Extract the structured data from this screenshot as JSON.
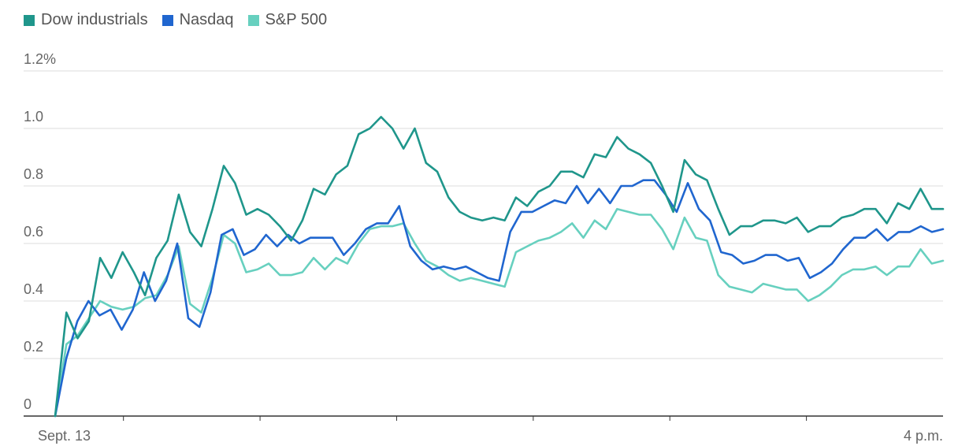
{
  "legend": [
    {
      "label": "Dow industrials",
      "color": "#1f968b"
    },
    {
      "label": "Nasdaq",
      "color": "#2066cf"
    },
    {
      "label": "S&P 500",
      "color": "#67d0bf"
    }
  ],
  "chart_data": {
    "type": "line",
    "title": "",
    "xlabel": "",
    "ylabel": "",
    "ylim": [
      0,
      1.2
    ],
    "yticks": [
      0,
      0.2,
      0.4,
      0.6,
      0.8,
      1.0,
      1.2
    ],
    "ytick_labels": [
      "0",
      "0.2",
      "0.4",
      "0.6",
      "0.8",
      "1.0",
      "1.2%"
    ],
    "x_tick_labels": {
      "start": "Sept. 13",
      "end": "4 p.m."
    },
    "grid": true,
    "legend_position": "top-left",
    "series": [
      {
        "name": "Dow industrials",
        "color": "#1f968b",
        "values": [
          0.0,
          0.36,
          0.27,
          0.33,
          0.55,
          0.48,
          0.57,
          0.5,
          0.42,
          0.55,
          0.61,
          0.77,
          0.64,
          0.59,
          0.72,
          0.87,
          0.81,
          0.7,
          0.72,
          0.7,
          0.66,
          0.61,
          0.68,
          0.79,
          0.77,
          0.84,
          0.87,
          0.98,
          1.0,
          1.04,
          1.0,
          0.93,
          1.0,
          0.88,
          0.85,
          0.76,
          0.71,
          0.69,
          0.68,
          0.69,
          0.68,
          0.76,
          0.73,
          0.78,
          0.8,
          0.85,
          0.85,
          0.83,
          0.91,
          0.9,
          0.97,
          0.93,
          0.91,
          0.88,
          0.8,
          0.71,
          0.89,
          0.84,
          0.82,
          0.72,
          0.63,
          0.66,
          0.66,
          0.68,
          0.68,
          0.67,
          0.69,
          0.64,
          0.66,
          0.66,
          0.69,
          0.7,
          0.72,
          0.72,
          0.67,
          0.74,
          0.72,
          0.79,
          0.72,
          0.72
        ]
      },
      {
        "name": "Nasdaq",
        "color": "#2066cf",
        "values": [
          0.0,
          0.2,
          0.33,
          0.4,
          0.35,
          0.37,
          0.3,
          0.37,
          0.5,
          0.4,
          0.47,
          0.6,
          0.34,
          0.31,
          0.43,
          0.63,
          0.65,
          0.56,
          0.58,
          0.63,
          0.59,
          0.63,
          0.6,
          0.62,
          0.62,
          0.62,
          0.56,
          0.6,
          0.65,
          0.67,
          0.67,
          0.73,
          0.59,
          0.54,
          0.51,
          0.52,
          0.51,
          0.52,
          0.5,
          0.48,
          0.47,
          0.64,
          0.71,
          0.71,
          0.73,
          0.75,
          0.74,
          0.8,
          0.74,
          0.79,
          0.74,
          0.8,
          0.8,
          0.82,
          0.82,
          0.77,
          0.71,
          0.81,
          0.72,
          0.68,
          0.57,
          0.56,
          0.53,
          0.54,
          0.56,
          0.56,
          0.54,
          0.55,
          0.48,
          0.5,
          0.53,
          0.58,
          0.62,
          0.62,
          0.65,
          0.61,
          0.64,
          0.64,
          0.66,
          0.64,
          0.65
        ]
      },
      {
        "name": "S&P 500",
        "color": "#67d0bf",
        "values": [
          0.0,
          0.25,
          0.28,
          0.34,
          0.4,
          0.38,
          0.37,
          0.38,
          0.41,
          0.42,
          0.49,
          0.59,
          0.39,
          0.36,
          0.48,
          0.63,
          0.6,
          0.5,
          0.51,
          0.53,
          0.49,
          0.49,
          0.5,
          0.55,
          0.51,
          0.55,
          0.53,
          0.6,
          0.65,
          0.66,
          0.66,
          0.67,
          0.6,
          0.54,
          0.52,
          0.49,
          0.47,
          0.48,
          0.47,
          0.46,
          0.45,
          0.57,
          0.59,
          0.61,
          0.62,
          0.64,
          0.67,
          0.62,
          0.68,
          0.65,
          0.72,
          0.71,
          0.7,
          0.7,
          0.65,
          0.58,
          0.69,
          0.62,
          0.61,
          0.49,
          0.45,
          0.44,
          0.43,
          0.46,
          0.45,
          0.44,
          0.44,
          0.4,
          0.42,
          0.45,
          0.49,
          0.51,
          0.51,
          0.52,
          0.49,
          0.52,
          0.52,
          0.58,
          0.53,
          0.54
        ]
      }
    ]
  }
}
